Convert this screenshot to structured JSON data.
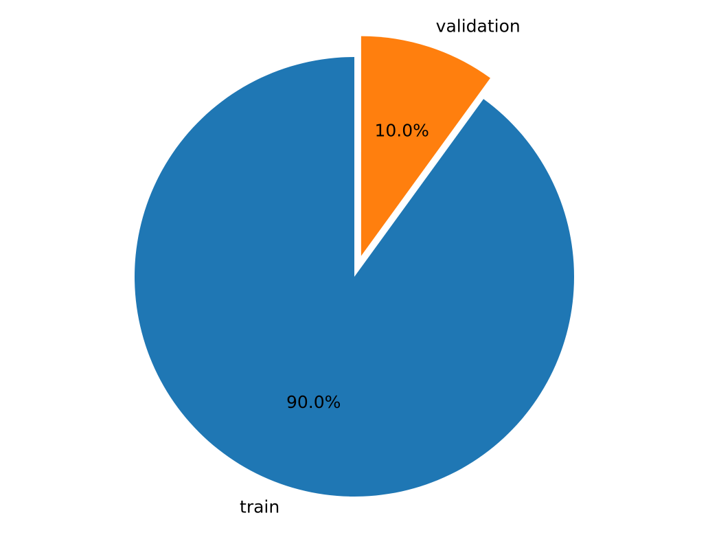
{
  "chart_data": {
    "type": "pie",
    "title": "",
    "start_angle": "top (12 o'clock), clockwise",
    "slices": [
      {
        "label": "validation",
        "value": 10.0,
        "percent_label": "10.0%",
        "color": "#ff7f0e",
        "exploded": true
      },
      {
        "label": "train",
        "value": 90.0,
        "percent_label": "90.0%",
        "color": "#1f77b4",
        "exploded": false
      }
    ]
  }
}
